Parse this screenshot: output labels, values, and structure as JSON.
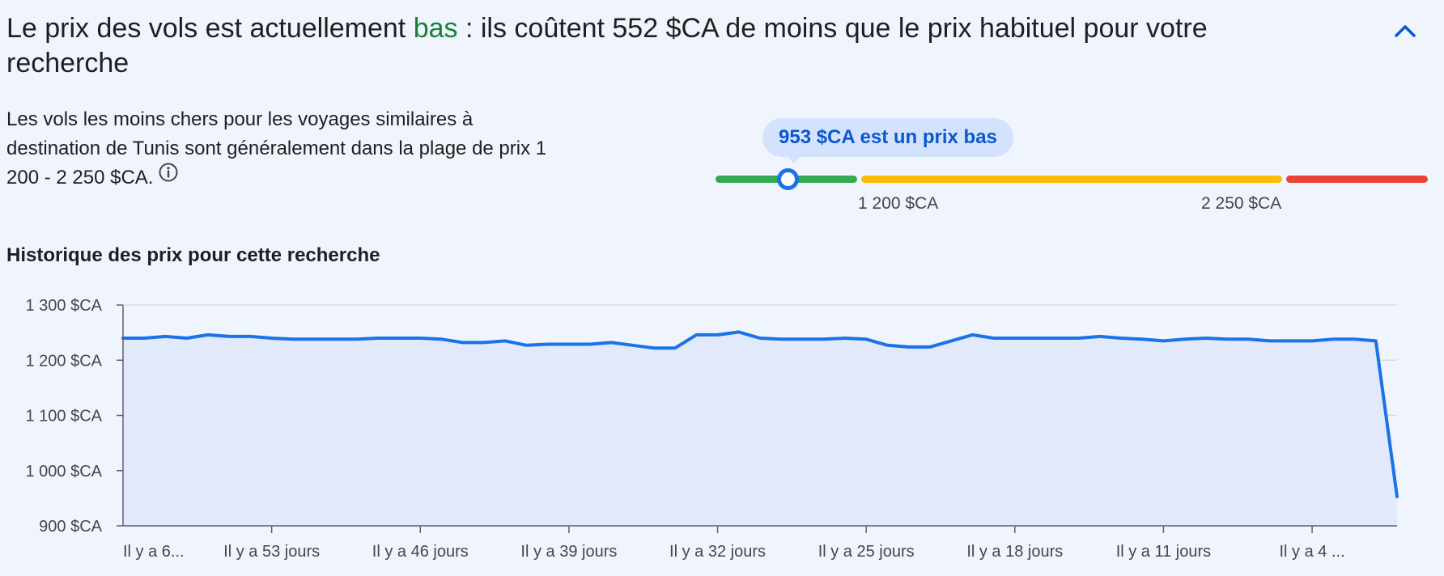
{
  "headline": {
    "prefix": "Le prix des vols est actuellement ",
    "level": "bas",
    "suffix": " : ils coûtent 552 $CA de moins que le prix habituel pour votre recherche"
  },
  "collapse_icon": "chevron-up-icon",
  "description": {
    "text": "Les vols les moins chers pour les voyages similaires à destination de Tunis sont généralement dans la plage de prix 1 200 - 2 250 $CA.",
    "info_icon": "info-icon"
  },
  "price_meter": {
    "bubble": "953 $CA est un prix bas",
    "low_bound_label": "1 200 $CA",
    "high_bound_label": "2 250 $CA",
    "current_price": 953,
    "range_low": 1200,
    "range_high": 2250,
    "colors": {
      "low": "#34a853",
      "typical": "#fbbc04",
      "high": "#ea4335",
      "marker": "#1a73e8"
    }
  },
  "history_title": "Historique des prix pour cette recherche",
  "chart_data": {
    "type": "area",
    "ylim": [
      900,
      1300
    ],
    "y_ticks": [
      900,
      1000,
      1100,
      1200,
      1300
    ],
    "y_tick_labels": [
      "900 $CA",
      "1 000 $CA",
      "1 100 $CA",
      "1 200 $CA",
      "1 300 $CA"
    ],
    "x_label_positions": [
      0,
      7,
      14,
      21,
      28,
      35,
      42,
      49,
      56
    ],
    "x_tick_labels": [
      "Il y a 6...",
      "Il y a 53 jours",
      "Il y a 46 jours",
      "Il y a 39 jours",
      "Il y a 32 jours",
      "Il y a 25 jours",
      "Il y a 18 jours",
      "Il y a 11 jours",
      "Il y a 4 ..."
    ],
    "x_max": 60,
    "grid": true,
    "colors": {
      "line": "#1a73e8",
      "fill": "#e1e9fb"
    },
    "series": [
      {
        "values": [
          1240,
          1240,
          1243,
          1240,
          1246,
          1243,
          1243,
          1240,
          1238,
          1238,
          1238,
          1238,
          1240,
          1240,
          1240,
          1238,
          1232,
          1232,
          1235,
          1227,
          1229,
          1229,
          1229,
          1232,
          1227,
          1222,
          1222,
          1246,
          1246,
          1251,
          1240,
          1238,
          1238,
          1238,
          1240,
          1238,
          1227,
          1224,
          1224,
          1235,
          1246,
          1240,
          1240,
          1240,
          1240,
          1240,
          1243,
          1240,
          1238,
          1235,
          1238,
          1240,
          1238,
          1238,
          1235,
          1235,
          1235,
          1238,
          1238,
          1235,
          953
        ]
      }
    ]
  }
}
